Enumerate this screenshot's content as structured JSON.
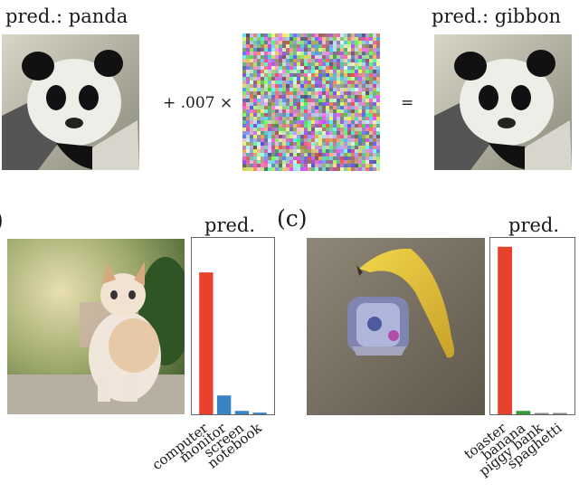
{
  "panel_a": {
    "left_pred": "pred.: panda",
    "operator_text": "+ .007 ×",
    "equals": "=",
    "right_pred": "pred.: gibbon",
    "images": [
      "panda photo",
      "adversarial noise",
      "panda photo"
    ]
  },
  "panel_b": {
    "label": ")",
    "chart_title": "pred.",
    "image": "kitten photo with adversarial patch"
  },
  "panel_c": {
    "label": "(c)",
    "chart_title": "pred.",
    "image": "banana with toaster sticker"
  },
  "colors": {
    "red": "#e8412c",
    "blue": "#3b84c4",
    "green": "#3a9a3a"
  },
  "chart_data": [
    {
      "type": "bar",
      "title": "pred.",
      "categories": [
        "computer",
        "monitor",
        "screen",
        "notebook"
      ],
      "values": [
        0.83,
        0.11,
        0.02,
        0.01
      ],
      "colors": [
        "#e8412c",
        "#3b84c4",
        "#3b84c4",
        "#3b84c4"
      ],
      "ylim": [
        0,
        1
      ]
    },
    {
      "type": "bar",
      "title": "pred.",
      "categories": [
        "toaster",
        "banana",
        "piggy bank",
        "spaghetti"
      ],
      "values": [
        0.98,
        0.02,
        0.005,
        0.003
      ],
      "colors": [
        "#e8412c",
        "#3a9a3a",
        "#888888",
        "#888888"
      ],
      "ylim": [
        0,
        1
      ]
    }
  ]
}
